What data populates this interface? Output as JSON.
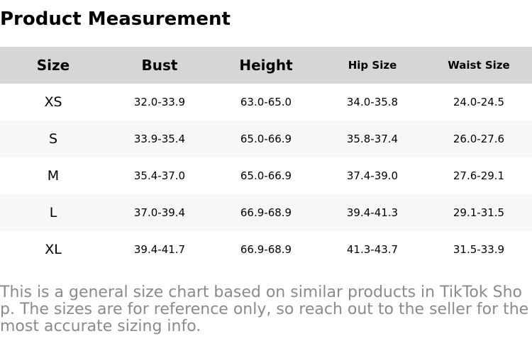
{
  "title": "Product Measurement",
  "table": {
    "headers": [
      "Size",
      "Bust",
      "Height",
      "Hip Size",
      "Waist Size"
    ],
    "rows": [
      [
        "XS",
        "32.0-33.9",
        "63.0-65.0",
        "34.0-35.8",
        "24.0-24.5"
      ],
      [
        "S",
        "33.9-35.4",
        "65.0-66.9",
        "35.8-37.4",
        "26.0-27.6"
      ],
      [
        "M",
        "35.4-37.0",
        "65.0-66.9",
        "37.4-39.0",
        "27.6-29.1"
      ],
      [
        "L",
        "37.0-39.4",
        "66.9-68.9",
        "39.4-41.3",
        "29.1-31.5"
      ],
      [
        "XL",
        "39.4-41.7",
        "66.9-68.9",
        "41.3-43.7",
        "31.5-33.9"
      ]
    ]
  },
  "note": "This is a general size chart based on similar products in TikTok Shop. The sizes are for reference only, so reach out to the seller for the most accurate sizing info."
}
